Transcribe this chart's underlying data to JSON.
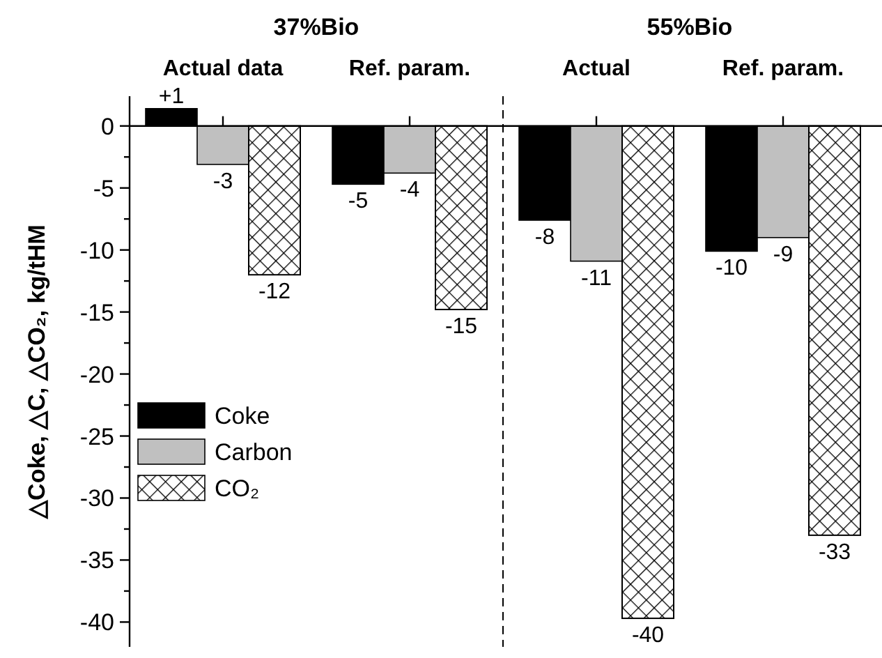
{
  "chart_data": {
    "type": "bar",
    "categories": [
      "Actual data",
      "Ref. param.",
      "Actual",
      "Ref. param."
    ],
    "ylabel": "△Coke, △C, △CO₂, kg/tHM",
    "annotations": [
      "37%Bio",
      "55%Bio"
    ],
    "series": [
      {
        "name": "Coke",
        "color": "#000000",
        "values": [
          1.4,
          -4.7,
          -7.6,
          -10.1
        ],
        "value_labels": [
          "+1",
          "-5",
          "-8",
          "-10"
        ]
      },
      {
        "name": "Carbon",
        "color": "#c0c0c0",
        "values": [
          -3.1,
          -3.8,
          -10.9,
          -9.0
        ],
        "value_labels": [
          "-3",
          "-4",
          "-11",
          "-9"
        ]
      },
      {
        "name": "CO₂",
        "color": "#000000",
        "values": [
          -12.0,
          -14.8,
          -39.7,
          -33.0
        ],
        "value_labels": [
          "-12",
          "-15",
          "-40",
          "-33"
        ]
      }
    ],
    "ylim": [
      -42,
      2.4
    ],
    "yticks": [
      0,
      {
        "value": -2.5,
        "label": null
      },
      -5,
      {
        "value": -7.5,
        "label": null
      },
      -10,
      {
        "value": -12.5,
        "label": null
      },
      -15,
      {
        "value": -17.5,
        "label": null
      },
      -20,
      {
        "value": -22.5,
        "label": null
      },
      -25,
      {
        "value": -27.5,
        "label": null
      },
      -30,
      {
        "value": -32.5,
        "label": null
      },
      -35,
      {
        "value": -37.5,
        "label": null
      },
      -40
    ],
    "legend": "left",
    "grid": false
  }
}
